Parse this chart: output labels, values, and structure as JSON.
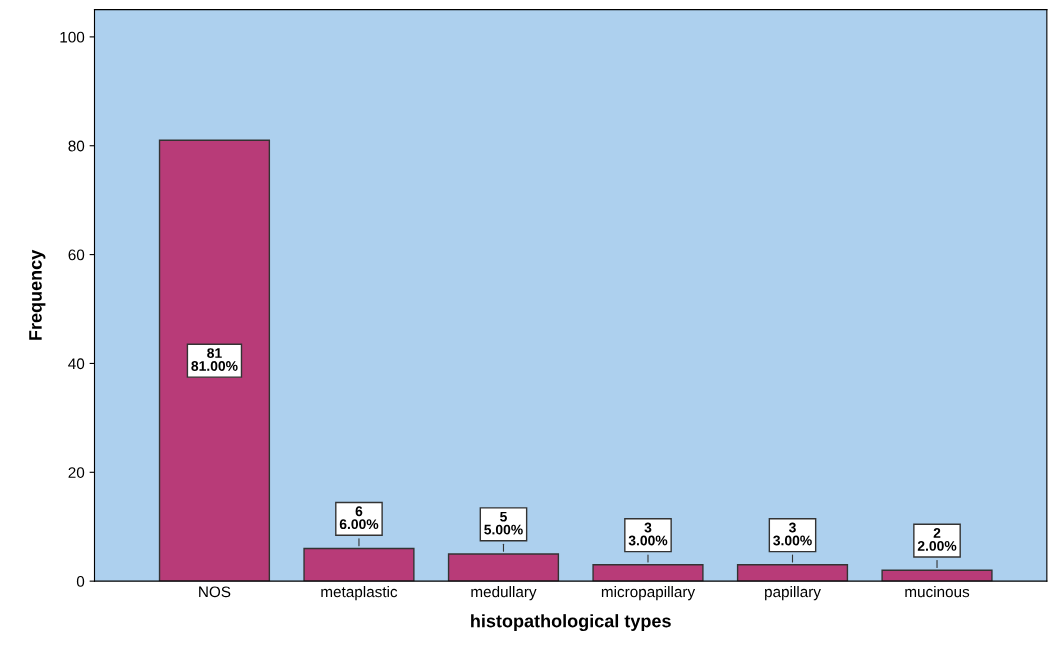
{
  "chart_data": {
    "type": "bar",
    "xlabel": "histopathological types",
    "ylabel": "Frequency",
    "categories": [
      "NOS",
      "metaplastic",
      "medullary",
      "micropapillary",
      "papillary",
      "mucinous"
    ],
    "values": [
      81,
      6,
      5,
      3,
      3,
      2
    ],
    "value_labels": [
      "81\n81.00%",
      "6\n6.00%",
      "5\n5.00%",
      "3\n3.00%",
      "3\n3.00%",
      "2\n2.00%"
    ],
    "color": "#b83b78",
    "ylim": [
      0,
      105
    ],
    "yticks": [
      0,
      20,
      40,
      60,
      80,
      100
    ],
    "grid": false
  }
}
